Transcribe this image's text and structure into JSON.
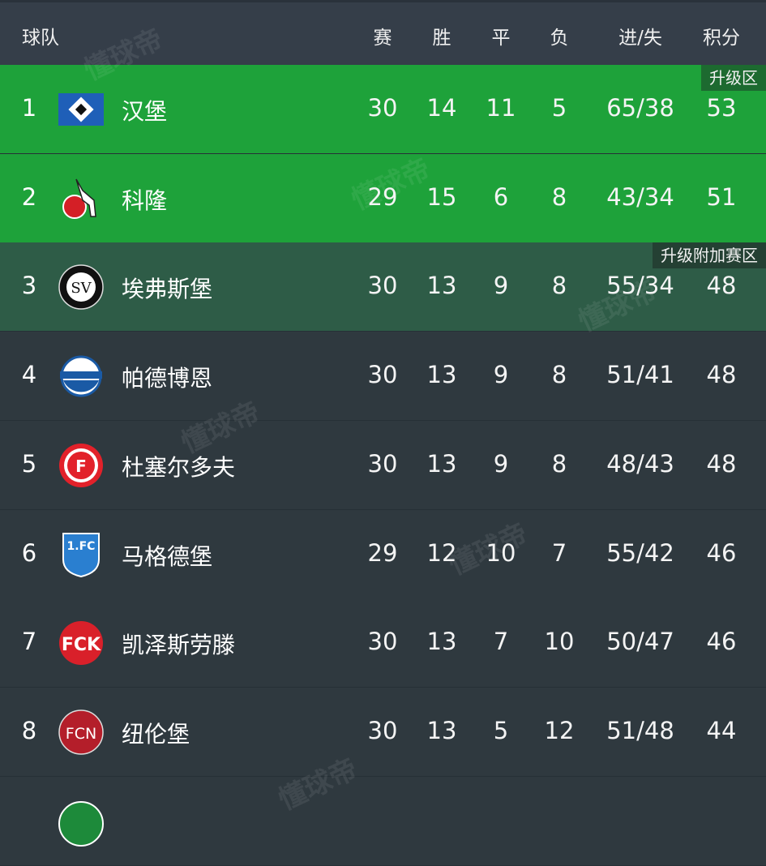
{
  "header": {
    "team": "球队",
    "played": "赛",
    "won": "胜",
    "drawn": "平",
    "lost": "负",
    "goals": "进/失",
    "points": "积分"
  },
  "zones": {
    "promotion": "升级区",
    "playoff": "升级附加赛区"
  },
  "colors": {
    "promotion": "#1ea23a",
    "playoff": "#2e5c47",
    "default": "#2f393f",
    "header": "#353e49"
  },
  "watermark": "懂球帝",
  "rows": [
    {
      "rank": "1",
      "team": "汉堡",
      "logo": "hamburg-crest-icon",
      "played": "30",
      "won": "14",
      "drawn": "11",
      "lost": "5",
      "goals": "65/38",
      "points": "53"
    },
    {
      "rank": "2",
      "team": "科隆",
      "logo": "koln-crest-icon",
      "played": "29",
      "won": "15",
      "drawn": "6",
      "lost": "8",
      "goals": "43/34",
      "points": "51"
    },
    {
      "rank": "3",
      "team": "埃弗斯堡",
      "logo": "elversberg-crest-icon",
      "played": "30",
      "won": "13",
      "drawn": "9",
      "lost": "8",
      "goals": "55/34",
      "points": "48"
    },
    {
      "rank": "4",
      "team": "帕德博恩",
      "logo": "paderborn-crest-icon",
      "played": "30",
      "won": "13",
      "drawn": "9",
      "lost": "8",
      "goals": "51/41",
      "points": "48"
    },
    {
      "rank": "5",
      "team": "杜塞尔多夫",
      "logo": "dusseldorf-crest-icon",
      "played": "30",
      "won": "13",
      "drawn": "9",
      "lost": "8",
      "goals": "48/43",
      "points": "48"
    },
    {
      "rank": "6",
      "team": "马格德堡",
      "logo": "magdeburg-crest-icon",
      "played": "29",
      "won": "12",
      "drawn": "10",
      "lost": "7",
      "goals": "55/42",
      "points": "46"
    },
    {
      "rank": "7",
      "team": "凯泽斯劳滕",
      "logo": "kaiserslautern-crest-icon",
      "played": "30",
      "won": "13",
      "drawn": "7",
      "lost": "10",
      "goals": "50/47",
      "points": "46"
    },
    {
      "rank": "8",
      "team": "纽伦堡",
      "logo": "nurnberg-crest-icon",
      "played": "30",
      "won": "13",
      "drawn": "5",
      "lost": "12",
      "goals": "51/48",
      "points": "44"
    }
  ]
}
